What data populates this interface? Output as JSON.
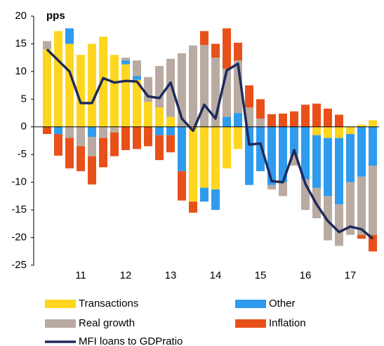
{
  "chart_data": {
    "type": "bar",
    "y_label": "pps",
    "categories": [
      null,
      null,
      null,
      "11",
      null,
      null,
      null,
      "12",
      null,
      null,
      null,
      "13",
      null,
      null,
      null,
      "14",
      null,
      null,
      null,
      "15",
      null,
      null,
      null,
      "16",
      null,
      null,
      null,
      "17",
      null,
      null
    ],
    "series": [
      {
        "name": "Transactions",
        "color": "#ffd61f",
        "values": [
          14,
          17.3,
          15,
          13,
          15,
          16.3,
          13,
          11.3,
          8.5,
          4.5,
          3.5,
          1.8,
          0,
          -13.5,
          -11,
          -11.3,
          -7.5,
          -4,
          0,
          0,
          0,
          0,
          0,
          0,
          -1.5,
          -2,
          -2,
          -1.3,
          0.4,
          1.2
        ]
      },
      {
        "name": "Other",
        "color": "#2f9bef",
        "values": [
          0,
          -1.3,
          2.8,
          0,
          -1.8,
          0,
          0,
          0.7,
          0.7,
          0,
          -1.5,
          -1.5,
          -8,
          0,
          -2.5,
          -3.7,
          1.8,
          2.5,
          -10.5,
          -8,
          -10.5,
          -10,
          -5,
          -9.5,
          -9.5,
          -10.5,
          -12,
          -8.7,
          -9,
          -7
        ]
      },
      {
        "name": "Real growth",
        "color": "#b9aba2",
        "values": [
          1.5,
          0,
          -2,
          -3.5,
          -3.5,
          -2,
          -1,
          0.5,
          2.8,
          4.5,
          7.5,
          10.5,
          13.3,
          14.7,
          14.8,
          12.5,
          8.7,
          9.5,
          3.5,
          1.5,
          -0.8,
          -2.5,
          -2,
          -5.5,
          -5.5,
          -8,
          -7.5,
          -9.5,
          -10.5,
          -12.5
        ]
      },
      {
        "name": "Inflation",
        "color": "#e8501a",
        "values": [
          -1.3,
          -3.9,
          -5.5,
          -4.5,
          -5.1,
          -5.3,
          -4.3,
          -4.2,
          -4,
          -3.5,
          -4.5,
          -3.1,
          -5.3,
          -2,
          2.5,
          2.5,
          7.3,
          3.2,
          4,
          3.5,
          2.3,
          2.4,
          2.8,
          4,
          4.2,
          3.3,
          2.2,
          0,
          -0.7,
          -3
        ]
      },
      {
        "name": "MFI loans to GDPratio",
        "color": "#1f2a5c",
        "kind": "line",
        "values": [
          14,
          12,
          10,
          4.3,
          4.3,
          8.8,
          8,
          8.3,
          8.2,
          5.5,
          5.2,
          8,
          1.5,
          -0.7,
          4,
          1.5,
          10.2,
          11.4,
          -3.2,
          -3,
          -9.8,
          -10,
          -4.2,
          -10.3,
          -14,
          -17,
          -19,
          -18,
          -18.5,
          -20.2
        ]
      }
    ],
    "ylim": [
      -25,
      20
    ],
    "yticks": [
      -25,
      -20,
      -15,
      -10,
      -5,
      0,
      5,
      10,
      15,
      20
    ]
  }
}
